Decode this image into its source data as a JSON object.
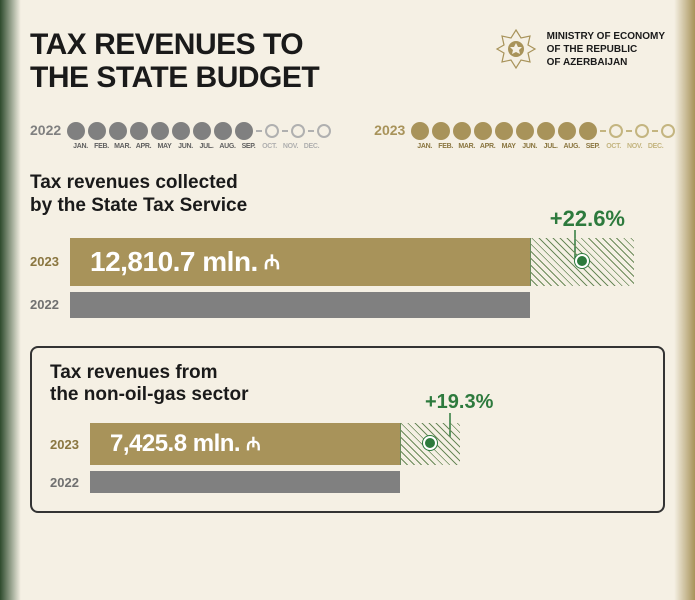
{
  "header": {
    "title_line1": "TAX REVENUES TO",
    "title_line2": "THE STATE BUDGET",
    "ministry_line1": "MINISTRY OF ECONOMY",
    "ministry_line2": "OF THE REPUBLIC",
    "ministry_line3": "OF AZERBAIJAN"
  },
  "timelines": {
    "year_2022": "2022",
    "year_2023": "2023",
    "months": [
      "JAN.",
      "FEB.",
      "MAR.",
      "APR.",
      "MAY",
      "JUN.",
      "JUL.",
      "AUG.",
      "SEP.",
      "OCT.",
      "NOV.",
      "DEC."
    ],
    "active_count": 9,
    "colors": {
      "gray": "#808080",
      "gold": "#a8935a",
      "gray_light": "#b0b0b0",
      "gold_light": "#c4b580"
    }
  },
  "chart1": {
    "title_line1": "Tax revenues collected",
    "title_line2": "by the State Tax Service",
    "pct": "+22.6%",
    "pct_color": "#2d7a3d",
    "year_2023": "2023",
    "year_2022": "2022",
    "value_2023": "12,810.7 mln.",
    "currency": "₼",
    "bar_2023_width": 460,
    "bar_2022_width": 460,
    "hatch_width": 104,
    "bar_gold": "#a8935a",
    "bar_gray": "#808080"
  },
  "chart2": {
    "title_line1": "Tax revenues from",
    "title_line2": "the non-oil-gas sector",
    "pct": "+19.3%",
    "pct_color": "#2d7a3d",
    "year_2023": "2023",
    "year_2022": "2022",
    "value_2023": "7,425.8 mln.",
    "currency": "₼",
    "bar_2023_width": 310,
    "bar_2022_width": 310,
    "hatch_width": 60
  },
  "bg": {
    "left": "#2d4a2d",
    "main": "#f5f0e4",
    "right": "#a8935a"
  }
}
